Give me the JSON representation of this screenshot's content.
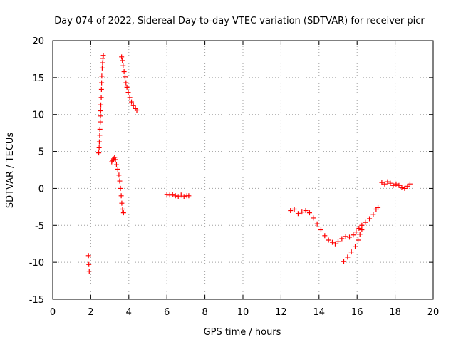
{
  "chart_data": {
    "type": "scatter",
    "title": "Day 074 of 2022, Sidereal Day-to-day VTEC variation (SDTVAR) for receiver picr",
    "xlabel": "GPS time / hours",
    "ylabel": "SDTVAR / TECUs",
    "xlim": [
      0,
      20
    ],
    "ylim": [
      -15,
      20
    ],
    "xticks": [
      0,
      2,
      4,
      6,
      8,
      10,
      12,
      14,
      16,
      18,
      20
    ],
    "yticks": [
      -15,
      -10,
      -5,
      0,
      5,
      10,
      15,
      20
    ],
    "grid": true,
    "marker": "+",
    "color": "#ff0000",
    "series": [
      {
        "name": "SDTVAR",
        "points": [
          [
            1.88,
            -9.1
          ],
          [
            1.9,
            -10.3
          ],
          [
            1.92,
            -11.2
          ],
          [
            2.42,
            4.8
          ],
          [
            2.44,
            5.5
          ],
          [
            2.45,
            6.3
          ],
          [
            2.47,
            7.2
          ],
          [
            2.48,
            8.0
          ],
          [
            2.5,
            9.0
          ],
          [
            2.51,
            9.8
          ],
          [
            2.52,
            10.5
          ],
          [
            2.53,
            11.3
          ],
          [
            2.55,
            12.3
          ],
          [
            2.56,
            13.4
          ],
          [
            2.57,
            14.3
          ],
          [
            2.58,
            15.2
          ],
          [
            2.6,
            16.3
          ],
          [
            2.62,
            17.0
          ],
          [
            2.64,
            17.6
          ],
          [
            2.66,
            18.0
          ],
          [
            3.1,
            3.6
          ],
          [
            3.15,
            3.8
          ],
          [
            3.2,
            4.0
          ],
          [
            3.25,
            4.2
          ],
          [
            3.3,
            3.9
          ],
          [
            3.35,
            3.2
          ],
          [
            3.42,
            2.6
          ],
          [
            3.48,
            1.8
          ],
          [
            3.52,
            1.0
          ],
          [
            3.56,
            0.0
          ],
          [
            3.6,
            -1.0
          ],
          [
            3.63,
            -2.0
          ],
          [
            3.67,
            -2.8
          ],
          [
            3.72,
            -3.3
          ],
          [
            3.62,
            17.8
          ],
          [
            3.66,
            17.3
          ],
          [
            3.7,
            16.6
          ],
          [
            3.75,
            15.8
          ],
          [
            3.8,
            15.1
          ],
          [
            3.85,
            14.3
          ],
          [
            3.9,
            13.7
          ],
          [
            3.97,
            13.0
          ],
          [
            4.05,
            12.3
          ],
          [
            4.14,
            11.7
          ],
          [
            4.24,
            11.2
          ],
          [
            4.35,
            10.8
          ],
          [
            4.42,
            10.6
          ],
          [
            6.0,
            -0.8
          ],
          [
            6.15,
            -0.9
          ],
          [
            6.3,
            -0.8
          ],
          [
            6.45,
            -1.0
          ],
          [
            6.6,
            -1.1
          ],
          [
            6.75,
            -0.9
          ],
          [
            6.9,
            -1.1
          ],
          [
            7.05,
            -1.0
          ],
          [
            7.15,
            -1.0
          ],
          [
            12.5,
            -3.0
          ],
          [
            12.7,
            -2.8
          ],
          [
            12.9,
            -3.4
          ],
          [
            13.1,
            -3.2
          ],
          [
            13.3,
            -3.0
          ],
          [
            13.5,
            -3.3
          ],
          [
            13.7,
            -4.0
          ],
          [
            13.9,
            -4.8
          ],
          [
            14.1,
            -5.6
          ],
          [
            14.3,
            -6.4
          ],
          [
            14.5,
            -7.0
          ],
          [
            14.7,
            -7.3
          ],
          [
            14.85,
            -7.5
          ],
          [
            15.0,
            -7.2
          ],
          [
            15.2,
            -6.8
          ],
          [
            15.4,
            -6.5
          ],
          [
            15.6,
            -6.6
          ],
          [
            15.8,
            -6.3
          ],
          [
            15.95,
            -5.9
          ],
          [
            16.1,
            -5.4
          ],
          [
            16.25,
            -5.0
          ],
          [
            16.45,
            -4.6
          ],
          [
            16.65,
            -4.1
          ],
          [
            16.85,
            -3.5
          ],
          [
            17.0,
            -2.8
          ],
          [
            17.1,
            -2.6
          ],
          [
            15.3,
            -9.9
          ],
          [
            15.5,
            -9.3
          ],
          [
            15.7,
            -8.6
          ],
          [
            15.9,
            -7.9
          ],
          [
            16.05,
            -7.0
          ],
          [
            16.15,
            -6.2
          ],
          [
            16.25,
            -5.6
          ],
          [
            17.3,
            0.8
          ],
          [
            17.45,
            0.6
          ],
          [
            17.6,
            0.9
          ],
          [
            17.75,
            0.7
          ],
          [
            17.9,
            0.4
          ],
          [
            18.05,
            0.6
          ],
          [
            18.2,
            0.4
          ],
          [
            18.35,
            0.1
          ],
          [
            18.5,
            0.0
          ],
          [
            18.65,
            0.3
          ],
          [
            18.78,
            0.6
          ]
        ]
      }
    ]
  }
}
